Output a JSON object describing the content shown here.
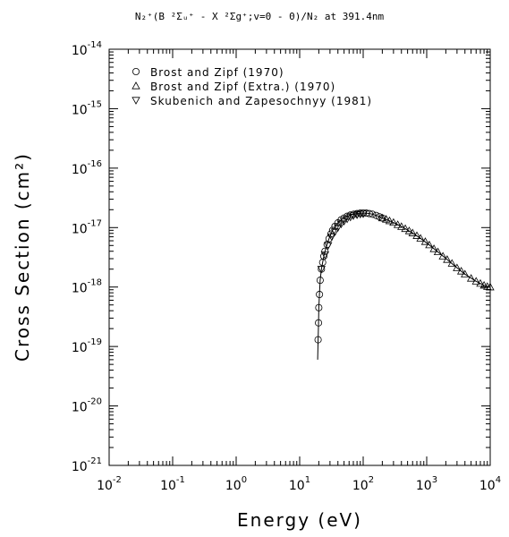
{
  "chart_data": {
    "type": "scatter",
    "title": "N₂⁺(B ²Σᵤ⁺ - X ²Σg⁺;v=0 - 0)/N₂ at 391.4nm",
    "xlabel": "Energy (eV)",
    "ylabel": "Cross Section (cm²)",
    "x_scale": "log",
    "y_scale": "log",
    "xlim": [
      0.01,
      10000
    ],
    "ylim": [
      1e-21,
      1e-14
    ],
    "x_ticks": [
      {
        "base": "10",
        "exp": "-2"
      },
      {
        "base": "10",
        "exp": "-1"
      },
      {
        "base": "10",
        "exp": "0"
      },
      {
        "base": "10",
        "exp": "1"
      },
      {
        "base": "10",
        "exp": "2"
      },
      {
        "base": "10",
        "exp": "3"
      },
      {
        "base": "10",
        "exp": "4"
      }
    ],
    "y_ticks": [
      {
        "base": "10",
        "exp": "-21"
      },
      {
        "base": "10",
        "exp": "-20"
      },
      {
        "base": "10",
        "exp": "-19"
      },
      {
        "base": "10",
        "exp": "-18"
      },
      {
        "base": "10",
        "exp": "-17"
      },
      {
        "base": "10",
        "exp": "-16"
      },
      {
        "base": "10",
        "exp": "-15"
      },
      {
        "base": "10",
        "exp": "-14"
      }
    ],
    "grid": false,
    "legend_position": "top-left",
    "series": [
      {
        "name": "Brost and Zipf (1970)",
        "marker": "circle",
        "x": [
          19.5,
          19.8,
          20.0,
          20.5,
          21.0,
          22.0,
          23.0,
          24.0,
          25.0,
          27.0,
          29.0,
          31.0,
          33.0,
          36.0,
          40.0,
          45.0,
          50.0,
          56.0,
          63.0,
          71.0,
          80.0,
          90.0,
          100.0,
          112.0,
          125.0,
          140.0,
          160.0,
          180.0,
          200.0
        ],
        "y": [
          1.3e-19,
          2.5e-19,
          4.5e-19,
          7.5e-19,
          1.3e-18,
          2e-18,
          2.6e-18,
          3.3e-18,
          4e-18,
          5.2e-18,
          6.5e-18,
          7.8e-18,
          9e-18,
          1.05e-17,
          1.2e-17,
          1.35e-17,
          1.45e-17,
          1.55e-17,
          1.63e-17,
          1.68e-17,
          1.72e-17,
          1.75e-17,
          1.76e-17,
          1.75e-17,
          1.72e-17,
          1.68e-17,
          1.6e-17,
          1.52e-17,
          1.45e-17
        ]
      },
      {
        "name": "Brost and Zipf (Extra.) (1970)",
        "marker": "triangle-up",
        "x": [
          200,
          230,
          260,
          300,
          350,
          400,
          460,
          530,
          600,
          700,
          800,
          950,
          1100,
          1300,
          1500,
          1800,
          2100,
          2500,
          3000,
          3500,
          4000,
          5000,
          6000,
          7000,
          8000,
          9000,
          10000
        ],
        "y": [
          1.45e-17,
          1.38e-17,
          1.3e-17,
          1.22e-17,
          1.12e-17,
          1.04e-17,
          9.6e-18,
          8.8e-18,
          8.1e-18,
          7.3e-18,
          6.6e-18,
          5.8e-18,
          5.1e-18,
          4.4e-18,
          3.9e-18,
          3.3e-18,
          2.9e-18,
          2.5e-18,
          2.1e-18,
          1.85e-18,
          1.65e-18,
          1.4e-18,
          1.25e-18,
          1.15e-18,
          1.07e-18,
          1.02e-18,
          1e-18
        ]
      },
      {
        "name": "Skubenich and Zapesochnyy (1981)",
        "marker": "triangle-down",
        "x": [
          22,
          25,
          28,
          32,
          36,
          40,
          45,
          50,
          56,
          63,
          70,
          80,
          90,
          100
        ],
        "y": [
          2e-18,
          3.5e-18,
          5e-18,
          7e-18,
          8.5e-18,
          1e-17,
          1.15e-17,
          1.28e-17,
          1.4e-17,
          1.5e-17,
          1.58e-17,
          1.64e-17,
          1.68e-17,
          1.7e-17
        ]
      }
    ],
    "fit_curve": {
      "x": [
        19.2,
        19.5,
        19.8,
        20.0,
        20.5,
        21.0,
        22.0,
        23.0,
        24.0,
        25.0,
        27.0,
        29.0,
        31.0,
        33.0,
        36.0,
        40.0,
        45.0,
        50.0,
        56.0,
        63.0,
        71.0,
        80.0,
        90.0,
        100.0,
        112.0,
        125.0,
        140.0,
        160.0,
        180.0,
        200.0,
        260.0,
        350.0,
        460.0,
        600.0,
        800.0,
        1100.0,
        1500.0,
        2100.0,
        3000.0,
        4000.0,
        6000.0,
        8000.0,
        10000.0
      ],
      "y": [
        6e-20,
        1.3e-19,
        2.5e-19,
        4.5e-19,
        7.5e-19,
        1.3e-18,
        2e-18,
        2.6e-18,
        3.3e-18,
        4e-18,
        5.2e-18,
        6.5e-18,
        7.8e-18,
        9e-18,
        1.05e-17,
        1.2e-17,
        1.35e-17,
        1.45e-17,
        1.55e-17,
        1.63e-17,
        1.68e-17,
        1.72e-17,
        1.75e-17,
        1.76e-17,
        1.75e-17,
        1.72e-17,
        1.68e-17,
        1.6e-17,
        1.52e-17,
        1.45e-17,
        1.3e-17,
        1.12e-17,
        9.6e-18,
        8.1e-18,
        6.6e-18,
        5.1e-18,
        3.9e-18,
        2.9e-18,
        2.1e-18,
        1.65e-18,
        1.25e-18,
        1.07e-18,
        1e-18
      ]
    }
  }
}
